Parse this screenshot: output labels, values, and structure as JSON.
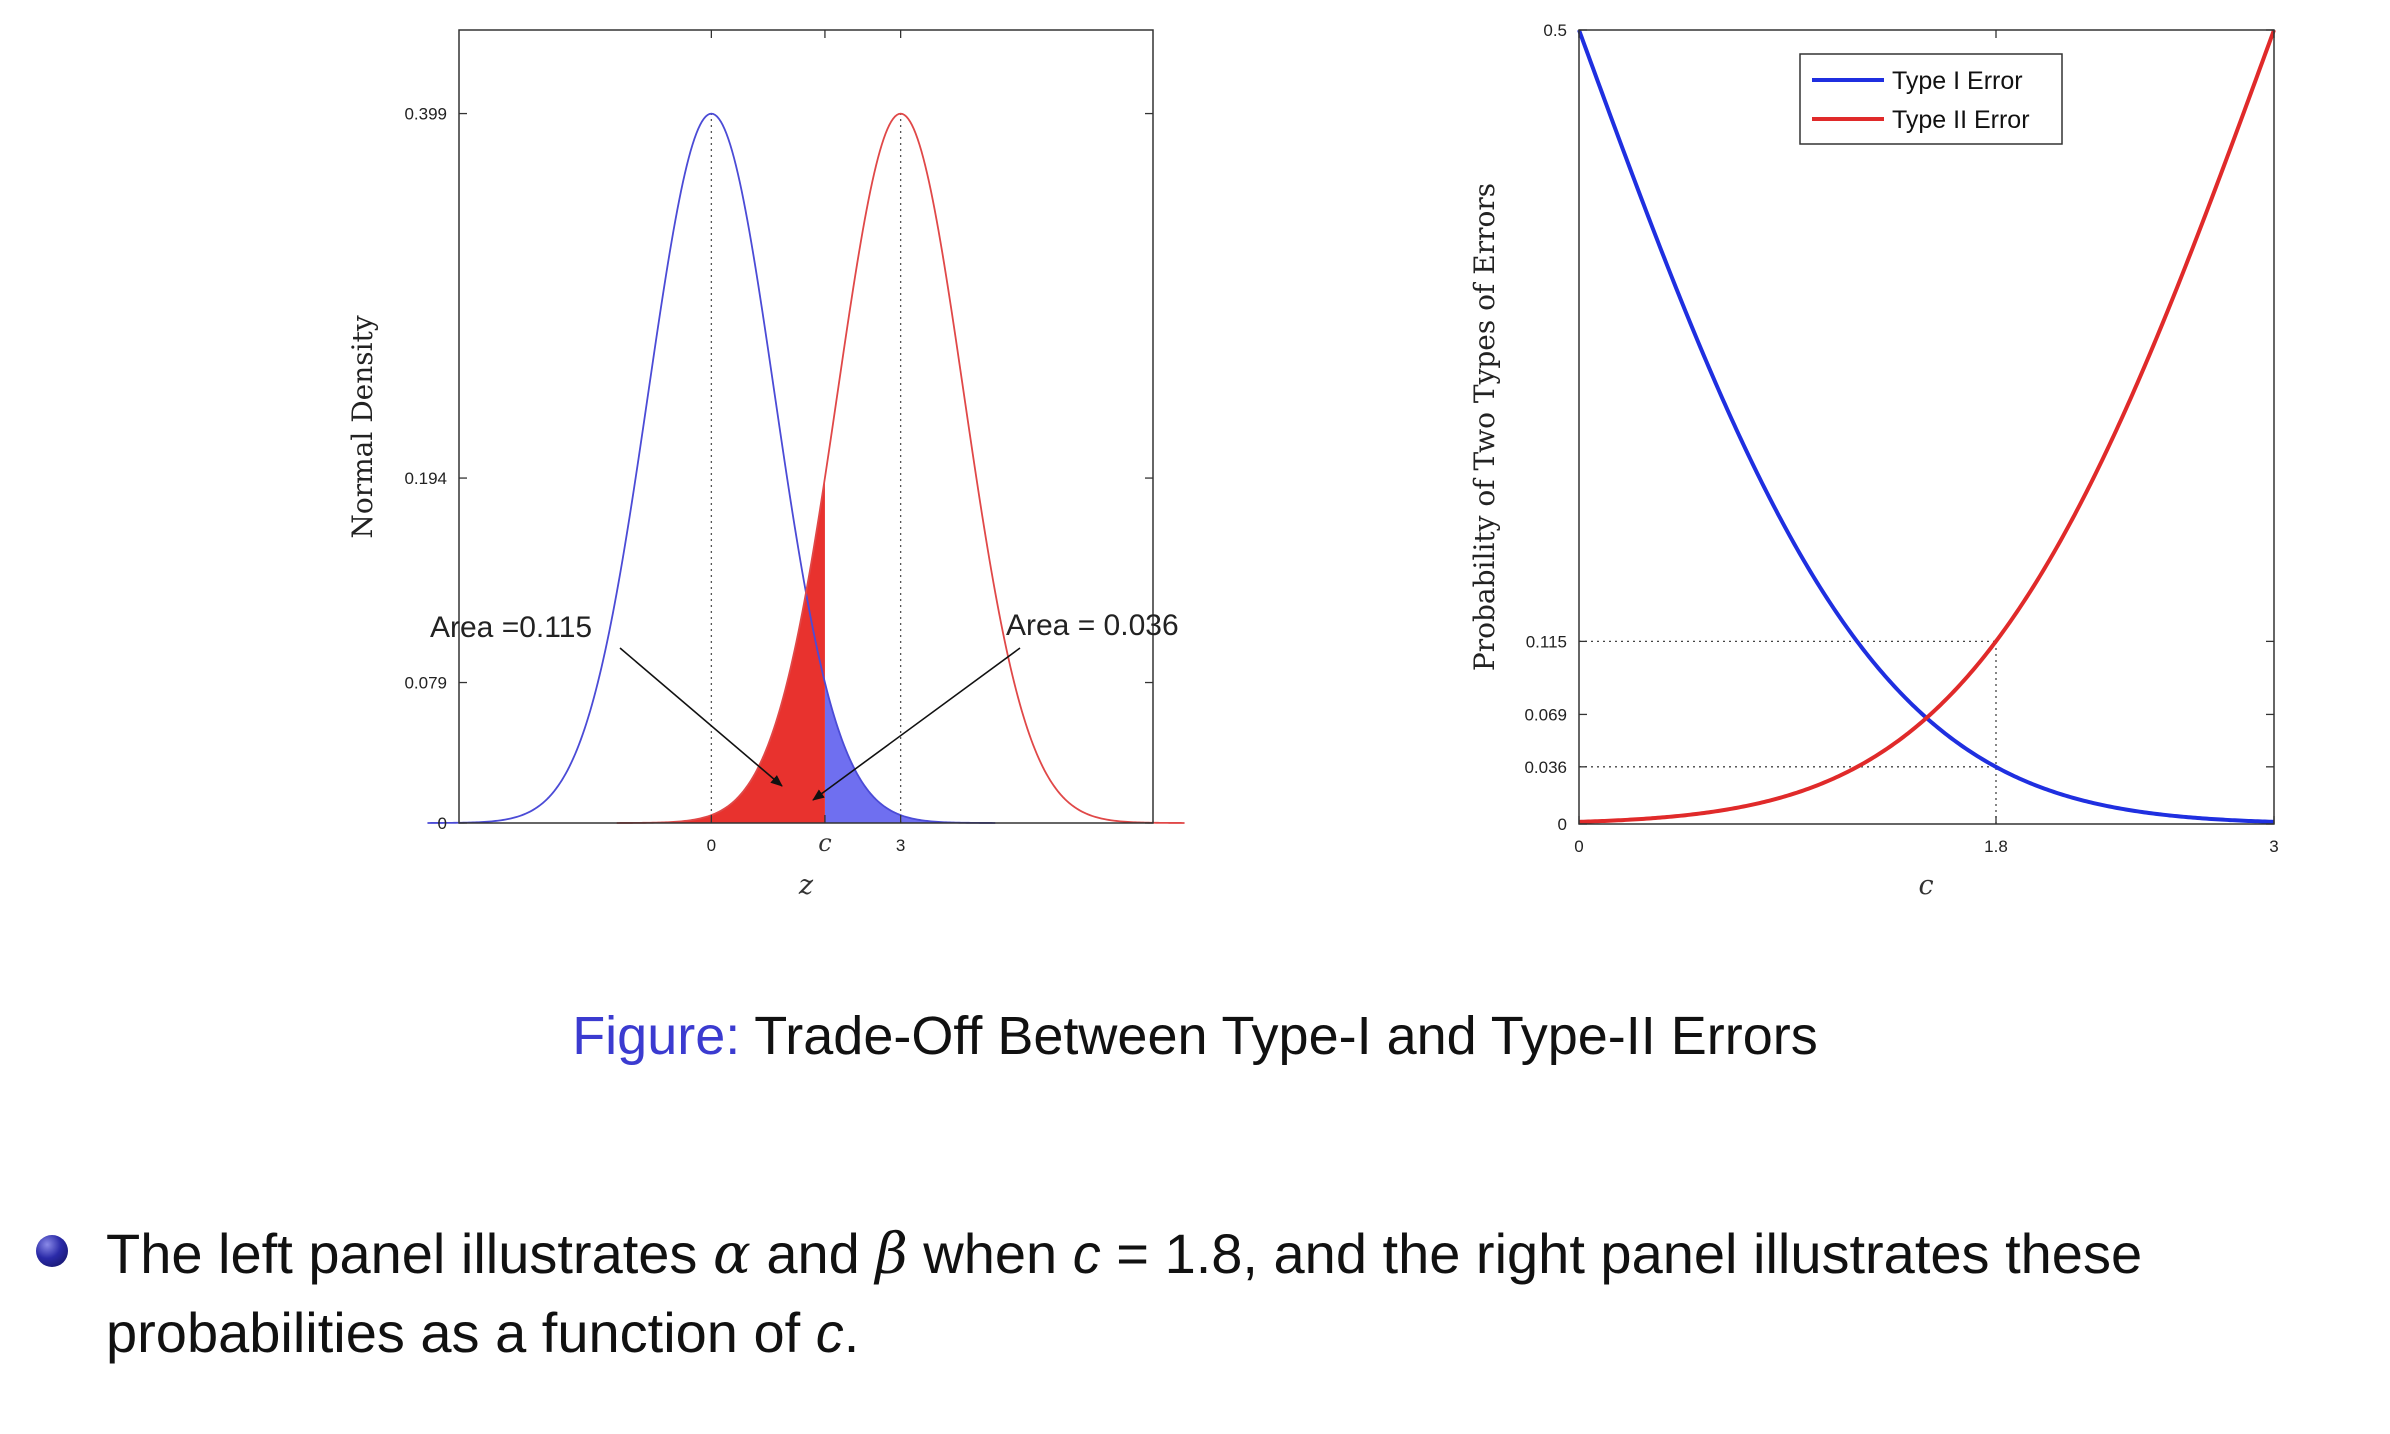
{
  "chart_data": [
    {
      "type": "area",
      "xlabel": "z",
      "ylabel": "Normal Density",
      "xlim": [
        -4,
        7
      ],
      "ylim": [
        0,
        0.446
      ],
      "grid": false,
      "x_ticks": [
        {
          "value": 0,
          "label": "0"
        },
        {
          "value": 1.8,
          "label": "c"
        },
        {
          "value": 3,
          "label": "3"
        }
      ],
      "y_ticks": [
        {
          "value": 0,
          "label": "0"
        },
        {
          "value": 0.079,
          "label": "0.079"
        },
        {
          "value": 0.194,
          "label": "0.194"
        },
        {
          "value": 0.399,
          "label": "0.399"
        }
      ],
      "critical_value": 1.8,
      "series": [
        {
          "type": "normal_density",
          "mean": 0,
          "sd": 1,
          "color": "#4b4bd6",
          "fill_region": "z > c",
          "fill_color": "#6f6ff0"
        },
        {
          "type": "normal_density",
          "mean": 3,
          "sd": 1,
          "color": "#e04848",
          "fill_region": "z < c",
          "fill_color": "#e8322e"
        }
      ],
      "annotations": [
        {
          "text": "Area =0.115",
          "value": 0.115
        },
        {
          "text": "Area = 0.036",
          "value": 0.036
        }
      ]
    },
    {
      "type": "line",
      "xlabel": "c",
      "ylabel": "Probability of Two Types of Errors",
      "xlim": [
        0,
        3
      ],
      "ylim": [
        0,
        0.5
      ],
      "grid": false,
      "legend_position": "top-right",
      "x_ticks": [
        {
          "value": 0,
          "label": "0"
        },
        {
          "value": 1.8,
          "label": "1.8"
        },
        {
          "value": 3,
          "label": "3"
        }
      ],
      "y_ticks": [
        {
          "value": 0,
          "label": "0"
        },
        {
          "value": 0.036,
          "label": "0.036"
        },
        {
          "value": 0.069,
          "label": "0.069"
        },
        {
          "value": 0.115,
          "label": "0.115"
        },
        {
          "value": 0.5,
          "label": "0.5"
        }
      ],
      "series": [
        {
          "name": "Type I Error",
          "color": "#1f2fe0",
          "formula": "1 - Phi(c)"
        },
        {
          "name": "Type II Error",
          "color": "#e02a2a",
          "formula": "Phi(c - 3)"
        }
      ],
      "reference_lines": [
        {
          "c": 1.8,
          "y": 0.115
        },
        {
          "c": 1.8,
          "y": 0.036
        }
      ]
    }
  ],
  "caption": {
    "label": "Figure:",
    "text": " Trade-Off Between Type-I and Type-II Errors"
  },
  "bullet": {
    "p1": "The left panel illustrates ",
    "alpha": "α",
    "p2": " and ",
    "beta": "β",
    "p3": " when ",
    "c1": "c",
    "p4": " = 1.8, and the right panel illustrates these probabilities as a function of ",
    "c2": "c",
    "p5": "."
  }
}
